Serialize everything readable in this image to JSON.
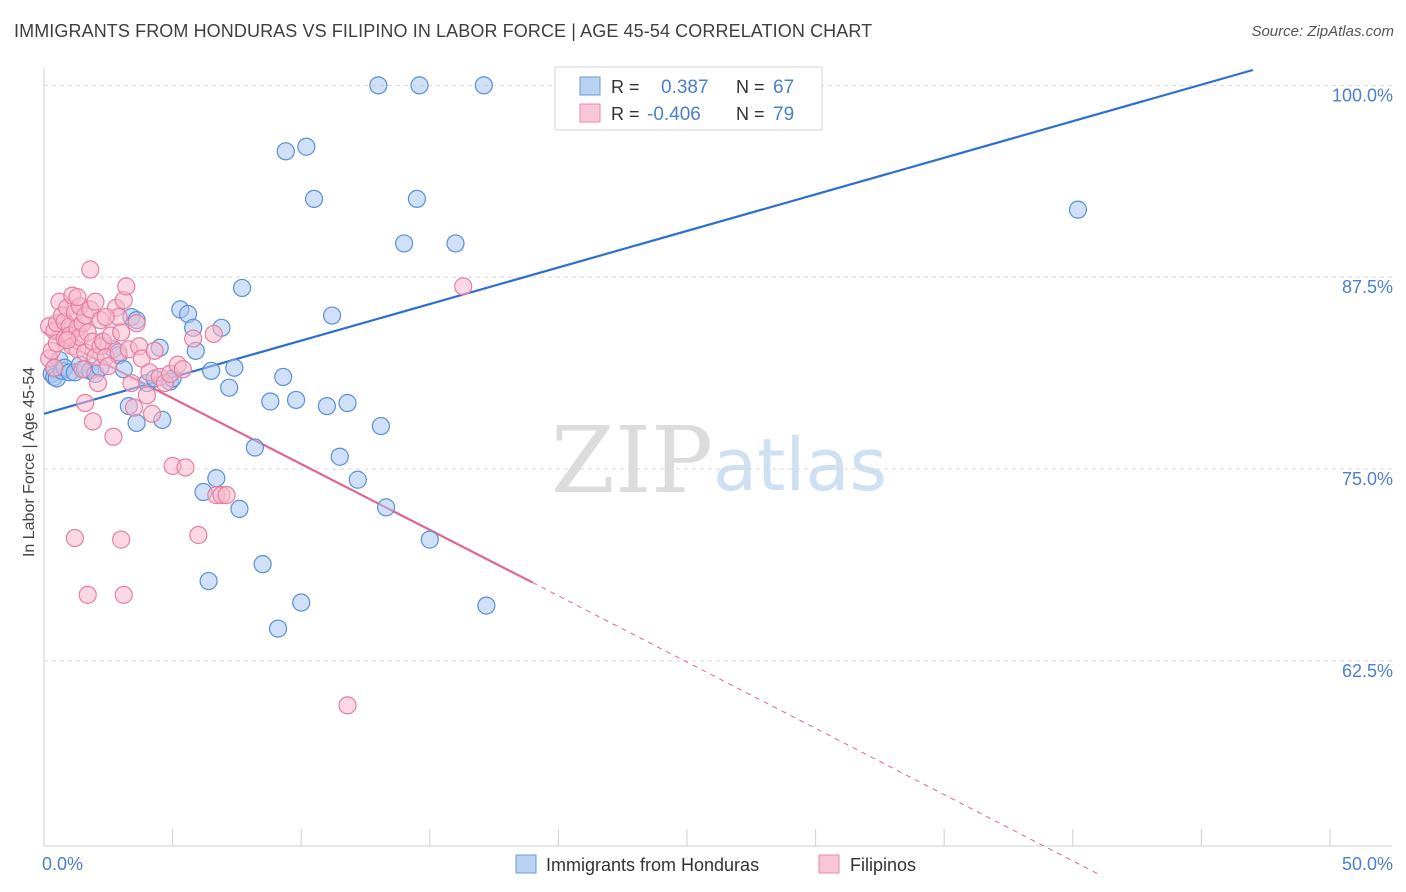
{
  "title": "IMMIGRANTS FROM HONDURAS VS FILIPINO IN LABOR FORCE | AGE 45-54 CORRELATION CHART",
  "source": "Source: ZipAtlas.com",
  "watermark": {
    "zip": "ZIP",
    "atlas": "atlas"
  },
  "colors": {
    "blue_fill": "#a9c8f0",
    "blue_stroke": "#5b8fd6",
    "blue_line": "#2f6fcf",
    "pink_fill": "#f7b8cb",
    "pink_stroke": "#e67fa1",
    "pink_line": "#e0648f",
    "axis_label": "#4a7fd0",
    "grid": "#d8d8d8"
  },
  "legend": {
    "rows": [
      {
        "r_label": "R =",
        "r_value": "0.387",
        "n_label": "N =",
        "n_value": "67"
      },
      {
        "r_label": "R =",
        "r_value": "-0.406",
        "n_label": "N =",
        "n_value": "79"
      }
    ]
  },
  "bottom_legend": [
    "Immigrants from Honduras",
    "Filipinos"
  ],
  "chart_data": {
    "type": "scatter",
    "title": "IMMIGRANTS FROM HONDURAS VS FILIPINO IN LABOR FORCE | AGE 45-54 CORRELATION CHART",
    "xlabel": "",
    "ylabel": "In Labor Force | Age 45-54",
    "xlim": [
      0,
      50
    ],
    "ylim": [
      50.5,
      101
    ],
    "x_tick_labels": [
      {
        "value": 0,
        "label": "0.0%"
      },
      {
        "value": 50,
        "label": "50.0%"
      }
    ],
    "y_tick_labels": [
      {
        "value": 100,
        "label": "100.0%"
      },
      {
        "value": 87.5,
        "label": "87.5%"
      },
      {
        "value": 75,
        "label": "75.0%"
      },
      {
        "value": 62.5,
        "label": "62.5%"
      }
    ],
    "x_minor_ticks": [
      0,
      5,
      10,
      15,
      20,
      25,
      30,
      35,
      40,
      45,
      50
    ],
    "series": [
      {
        "name": "Immigrants from Honduras",
        "color": "blue",
        "trend": {
          "x0": 0,
          "y0": 78.6,
          "x1": 47,
          "y1": 101,
          "dashed_to": null
        },
        "points": [
          [
            0.3,
            81.2
          ],
          [
            0.4,
            81.5
          ],
          [
            0.4,
            81.0
          ],
          [
            0.5,
            80.9
          ],
          [
            0.6,
            82.1
          ],
          [
            0.7,
            81.4
          ],
          [
            0.8,
            81.6
          ],
          [
            1.0,
            81.3
          ],
          [
            1.2,
            81.3
          ],
          [
            1.4,
            81.8
          ],
          [
            1.6,
            81.5
          ],
          [
            1.8,
            81.4
          ],
          [
            2.0,
            81.2
          ],
          [
            2.2,
            81.6
          ],
          [
            2.3,
            83.3
          ],
          [
            2.7,
            82.8
          ],
          [
            2.9,
            82.4
          ],
          [
            3.1,
            81.5
          ],
          [
            3.3,
            79.1
          ],
          [
            3.4,
            84.9
          ],
          [
            3.6,
            84.7
          ],
          [
            3.6,
            78.0
          ],
          [
            4.0,
            80.6
          ],
          [
            4.3,
            80.9
          ],
          [
            4.5,
            82.9
          ],
          [
            4.6,
            78.2
          ],
          [
            4.9,
            80.7
          ],
          [
            5.0,
            80.9
          ],
          [
            5.3,
            85.4
          ],
          [
            5.6,
            85.1
          ],
          [
            5.8,
            84.2
          ],
          [
            5.9,
            82.7
          ],
          [
            6.2,
            73.5
          ],
          [
            6.4,
            67.7
          ],
          [
            6.5,
            81.4
          ],
          [
            6.7,
            74.4
          ],
          [
            6.9,
            84.2
          ],
          [
            7.2,
            80.3
          ],
          [
            7.4,
            81.6
          ],
          [
            7.6,
            72.4
          ],
          [
            7.7,
            86.8
          ],
          [
            8.2,
            76.4
          ],
          [
            8.5,
            68.8
          ],
          [
            8.8,
            79.4
          ],
          [
            9.1,
            64.6
          ],
          [
            9.3,
            81.0
          ],
          [
            9.4,
            95.7
          ],
          [
            9.8,
            79.5
          ],
          [
            10.0,
            66.3
          ],
          [
            10.2,
            96.0
          ],
          [
            10.5,
            92.6
          ],
          [
            11.0,
            79.1
          ],
          [
            11.2,
            85.0
          ],
          [
            11.5,
            75.8
          ],
          [
            11.8,
            79.3
          ],
          [
            12.2,
            74.3
          ],
          [
            13.0,
            100.0
          ],
          [
            13.1,
            77.8
          ],
          [
            13.3,
            72.5
          ],
          [
            14.0,
            89.7
          ],
          [
            14.5,
            92.6
          ],
          [
            14.6,
            100.0
          ],
          [
            15.0,
            70.4
          ],
          [
            16.0,
            89.7
          ],
          [
            17.1,
            100.0
          ],
          [
            17.2,
            66.1
          ],
          [
            40.2,
            91.9
          ]
        ]
      },
      {
        "name": "Filipinos",
        "color": "pink",
        "trend": {
          "x0": 0,
          "y0": 83.9,
          "x1": 19.0,
          "y1": 67.6,
          "dashed_to": {
            "x": 41.0,
            "y": 48.6
          }
        },
        "points": [
          [
            0.2,
            84.3
          ],
          [
            0.2,
            82.2
          ],
          [
            0.3,
            82.7
          ],
          [
            0.4,
            81.6
          ],
          [
            0.4,
            84.0
          ],
          [
            0.5,
            84.5
          ],
          [
            0.5,
            83.2
          ],
          [
            0.6,
            85.9
          ],
          [
            0.7,
            85.0
          ],
          [
            0.8,
            84.6
          ],
          [
            0.8,
            83.5
          ],
          [
            0.9,
            85.5
          ],
          [
            1.0,
            84.3
          ],
          [
            1.0,
            83.7
          ],
          [
            1.1,
            86.3
          ],
          [
            1.1,
            83.0
          ],
          [
            1.2,
            85.2
          ],
          [
            1.2,
            70.5
          ],
          [
            1.3,
            84.2
          ],
          [
            1.3,
            82.8
          ],
          [
            1.4,
            85.6
          ],
          [
            1.4,
            83.6
          ],
          [
            1.5,
            84.5
          ],
          [
            1.5,
            81.5
          ],
          [
            1.6,
            85.0
          ],
          [
            1.6,
            82.6
          ],
          [
            1.6,
            79.3
          ],
          [
            1.7,
            66.8
          ],
          [
            1.7,
            83.9
          ],
          [
            1.8,
            88.0
          ],
          [
            1.8,
            85.4
          ],
          [
            1.9,
            83.3
          ],
          [
            1.9,
            78.1
          ],
          [
            2.0,
            85.9
          ],
          [
            2.0,
            82.3
          ],
          [
            2.1,
            80.6
          ],
          [
            2.2,
            84.7
          ],
          [
            2.2,
            83.0
          ],
          [
            2.3,
            83.3
          ],
          [
            2.4,
            82.3
          ],
          [
            2.5,
            81.7
          ],
          [
            2.6,
            83.7
          ],
          [
            2.7,
            77.1
          ],
          [
            2.8,
            85.5
          ],
          [
            2.9,
            84.9
          ],
          [
            2.9,
            82.6
          ],
          [
            3.0,
            83.9
          ],
          [
            3.0,
            70.4
          ],
          [
            3.1,
            86.0
          ],
          [
            3.1,
            66.8
          ],
          [
            3.2,
            86.9
          ],
          [
            3.3,
            82.8
          ],
          [
            3.4,
            80.6
          ],
          [
            3.5,
            79.0
          ],
          [
            3.6,
            84.5
          ],
          [
            3.7,
            83.0
          ],
          [
            3.8,
            82.2
          ],
          [
            4.0,
            79.8
          ],
          [
            4.1,
            81.3
          ],
          [
            4.2,
            78.6
          ],
          [
            4.3,
            82.7
          ],
          [
            4.5,
            81.0
          ],
          [
            4.7,
            80.6
          ],
          [
            4.9,
            81.2
          ],
          [
            5.0,
            75.2
          ],
          [
            5.2,
            81.8
          ],
          [
            5.4,
            81.5
          ],
          [
            5.5,
            75.1
          ],
          [
            5.8,
            83.5
          ],
          [
            6.0,
            70.7
          ],
          [
            6.6,
            83.8
          ],
          [
            6.7,
            73.3
          ],
          [
            6.9,
            73.3
          ],
          [
            7.1,
            73.3
          ],
          [
            11.8,
            59.6
          ],
          [
            16.3,
            86.9
          ],
          [
            0.9,
            83.4
          ],
          [
            2.4,
            84.9
          ],
          [
            1.3,
            86.2
          ]
        ]
      }
    ]
  }
}
